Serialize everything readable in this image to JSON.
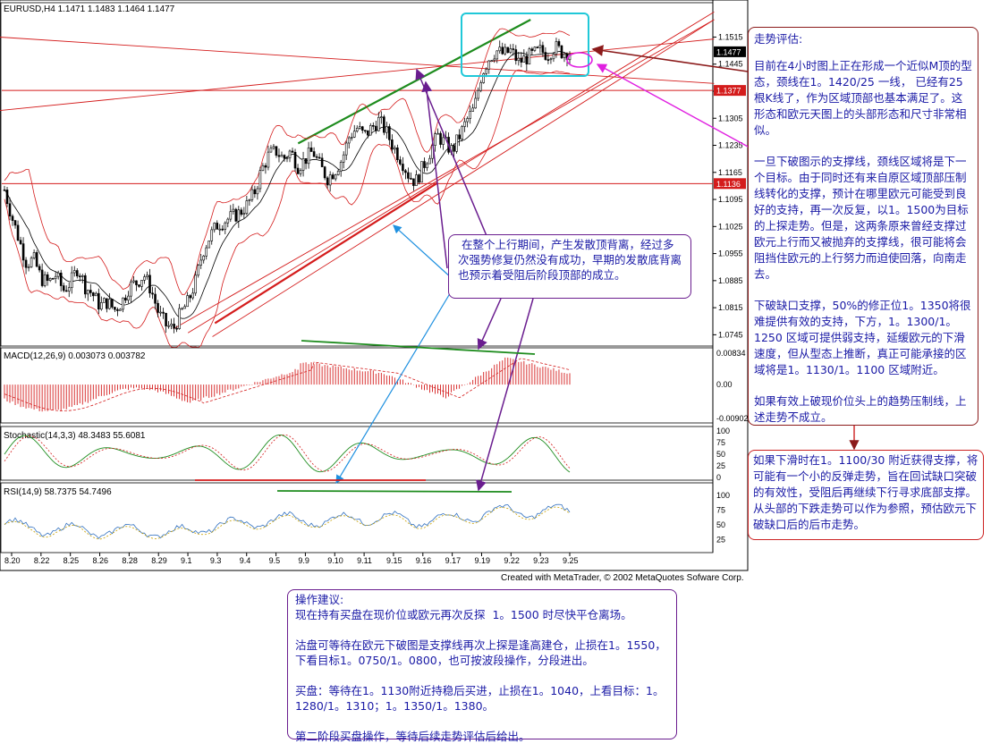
{
  "chart_data": [
    {
      "type": "candlestick",
      "panel": "price",
      "header": "EURUSD,H4  1.1471 1.1483 1.1464 1.1477",
      "symbol": "EURUSD",
      "timeframe": "H4",
      "ohlc": {
        "open": 1.1471,
        "high": 1.1483,
        "low": 1.1464,
        "close": 1.1477
      },
      "y_ticks": [
        "1.1515",
        "1.1445",
        "1.1375",
        "1.1305",
        "1.1235",
        "1.1165",
        "1.1095",
        "1.1025",
        "1.0955",
        "1.0885",
        "1.0815",
        "1.0745"
      ],
      "ylim": [
        1.0732,
        1.156
      ],
      "price_tags": [
        {
          "label": "1.1477",
          "value": 1.1477,
          "color": "#000000"
        },
        {
          "label": "1.1377",
          "value": 1.1377,
          "color": "#d41c1c"
        },
        {
          "label": "1.1136",
          "value": 1.1136,
          "color": "#d41c1c"
        }
      ],
      "x_ticks": [
        "8.20",
        "8.22",
        "8.25",
        "8.26",
        "8.28",
        "8.29",
        "9.1",
        "9.3",
        "9.4",
        "9.5",
        "9.9",
        "9.10",
        "9.11",
        "9.15",
        "9.16",
        "9.17",
        "9.19",
        "9.22",
        "9.23",
        "9.25"
      ],
      "close_path": [
        [
          0,
          1.112
        ],
        [
          6,
          1.105
        ],
        [
          12,
          1.099
        ],
        [
          18,
          1.093
        ],
        [
          24,
          1.094
        ],
        [
          30,
          1.089
        ],
        [
          36,
          1.088
        ],
        [
          42,
          1.09
        ],
        [
          48,
          1.086
        ],
        [
          54,
          1.088
        ],
        [
          60,
          1.092
        ],
        [
          66,
          1.087
        ],
        [
          72,
          1.085
        ],
        [
          78,
          1.082
        ],
        [
          84,
          1.083
        ],
        [
          90,
          1.081
        ],
        [
          96,
          1.083
        ],
        [
          102,
          1.087
        ],
        [
          108,
          1.088
        ],
        [
          114,
          1.09
        ],
        [
          120,
          1.086
        ],
        [
          126,
          1.08
        ],
        [
          132,
          1.077
        ],
        [
          138,
          1.076
        ],
        [
          144,
          1.08
        ],
        [
          150,
          1.083
        ],
        [
          156,
          1.088
        ],
        [
          162,
          1.096
        ],
        [
          168,
          1.1
        ],
        [
          174,
          1.103
        ],
        [
          180,
          1.104
        ],
        [
          186,
          1.105
        ],
        [
          192,
          1.106
        ],
        [
          198,
          1.108
        ],
        [
          204,
          1.111
        ],
        [
          210,
          1.117
        ],
        [
          216,
          1.121
        ],
        [
          222,
          1.122
        ],
        [
          228,
          1.12
        ],
        [
          234,
          1.122
        ],
        [
          240,
          1.118
        ],
        [
          246,
          1.12
        ],
        [
          252,
          1.122
        ],
        [
          258,
          1.118
        ],
        [
          264,
          1.115
        ],
        [
          270,
          1.117
        ],
        [
          276,
          1.12
        ],
        [
          282,
          1.126
        ],
        [
          288,
          1.128
        ],
        [
          294,
          1.126
        ],
        [
          300,
          1.128
        ],
        [
          306,
          1.13
        ],
        [
          312,
          1.127
        ],
        [
          318,
          1.123
        ],
        [
          324,
          1.12
        ],
        [
          330,
          1.116
        ],
        [
          336,
          1.114
        ],
        [
          342,
          1.118
        ],
        [
          348,
          1.122
        ],
        [
          354,
          1.126
        ],
        [
          360,
          1.124
        ],
        [
          366,
          1.122
        ],
        [
          372,
          1.126
        ],
        [
          378,
          1.13
        ],
        [
          384,
          1.133
        ],
        [
          390,
          1.142
        ],
        [
          396,
          1.146
        ],
        [
          402,
          1.148
        ],
        [
          408,
          1.147
        ],
        [
          414,
          1.148
        ],
        [
          420,
          1.145
        ],
        [
          426,
          1.146
        ],
        [
          432,
          1.147
        ],
        [
          438,
          1.148
        ],
        [
          444,
          1.147
        ],
        [
          450,
          1.149
        ],
        [
          456,
          1.1475
        ],
        [
          462,
          1.1477
        ]
      ],
      "trend_lines": [
        {
          "color": "#1e8c1e",
          "label": "upper channel (highs)"
        },
        {
          "color": "#d41c1c",
          "label": "rising support lines"
        },
        {
          "color": "#d41c1c",
          "label": "neckline 1.1420/25"
        }
      ]
    },
    {
      "type": "bar",
      "panel": "macd",
      "header": "MACD(12,26,9)  0.003073  0.003782",
      "values_label": [
        "0.003073",
        "0.003782"
      ],
      "y_ticks": [
        "0.00834",
        "0.00",
        "-0.00902"
      ],
      "ylim": [
        -0.00902,
        0.00834
      ]
    },
    {
      "type": "line",
      "panel": "stochastic",
      "header": "Stochastic(14,3,3)  48.3483  55.6081",
      "values_label": [
        "48.3483",
        "55.6081"
      ],
      "y_ticks": [
        "100",
        "75",
        "50",
        "25",
        "0"
      ],
      "ylim": [
        0,
        100
      ]
    },
    {
      "type": "line",
      "panel": "rsi",
      "header": "RSI(14,9)  58.7375  54.7496",
      "values_label": [
        "58.7375",
        "54.7496"
      ],
      "y_ticks": [
        "100",
        "75",
        "50",
        "25"
      ],
      "ylim": [
        0,
        100
      ]
    }
  ],
  "credit": "Created with MetaTrader, © 2002 MetaQuotes Sofware Corp.",
  "annotations": {
    "assessment": [
      "走势评估:",
      "目前在4小时图上正在形成一个近似M顶的型态，颈线在1。1420/25 一线， 已经有25根K线了，作为区域顶部也基本满足了。这形态和欧元天图上的头部形态和尺寸非常相似。",
      "一旦下破图示的支撑线，颈线区域将是下一个目标。由于同时还有来自原区域顶部压制线转化的支撑，预计在哪里欧元可能受到良好的支持，再一次反复，以1。1500为目标的上探走势。但是，这两条原来曾经支撑过欧元上行而又被抛弃的支撑线，很可能将会阻挡住欧元的上行努力而迫使回落，向南走去。",
      "下破缺口支撑，50%的修正位1。1350将很难提供有效的支持，下方，1。1300/1。1250 区域可提供弱支持，延缓欧元的下滑速度，但从型态上推断，真正可能承接的区域将是1。1130/1。1100 区域附近。",
      "如果有效上破现价位头上的趋势压制线，上述走势不成立。"
    ],
    "reversal": "如果下滑时在1。1100/30 附近获得支撑，将可能有一个小的反弹走势，旨在回试缺口突破的有效性，受阻后再继续下行寻求底部支撑。从头部的下跌走势可以作为参照，预估欧元下破缺口后的后市走势。",
    "divergence": " 在整个上行期间，产生发散顶背离，经过多次强势修复仍然没有成功，早期的发散底背离也预示着受阻后阶段顶部的成立。",
    "advice": [
      "操作建议:\n现在持有买盘在现价位或欧元再次反探  1。1500 时尽快平仓离场。",
      "沽盘可等待在欧元下破图是支撑线再次上探是逢高建仓，止损在1。1550，下看目标1。0750/1。0800，也可按波段操作，分段进出。",
      "买盘：等待在1。1130附近持稳后买进，止损在1。1040，上看目标：1。1280/1。1310；1。1350/1。1380。",
      "第二阶段买盘操作，等待后续走势评估后给出。"
    ]
  },
  "colors": {
    "candle": "#000000",
    "bollinger": "#d41c1c",
    "ma": "#000000",
    "macd_hist": "#d41c1c",
    "stoch_main": "#1e8c1e",
    "stoch_signal": "#d41c1c",
    "rsi_main": "#3070c0",
    "rsi_signal": "#c8a000",
    "purple": "#6a1d8f",
    "blue_arrow": "#1e90e0",
    "cyan_box": "#20c8d8",
    "magenta": "#e020e0"
  }
}
